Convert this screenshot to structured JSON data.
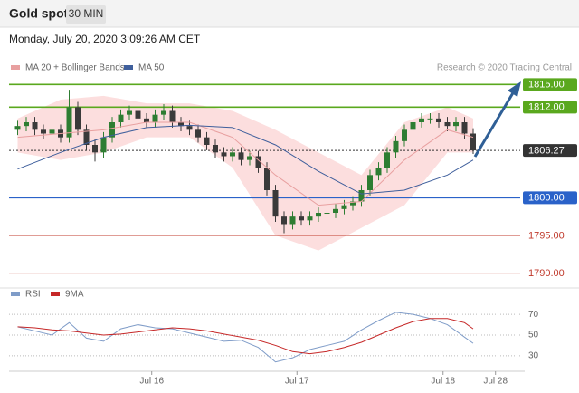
{
  "header": {
    "title": "Gold spot",
    "timeframe": "30 MIN",
    "timestamp": "Monday, July 20, 2020 3:09:26 AM CET"
  },
  "chart_data": [
    {
      "type": "candlestick",
      "credit": "Research © 2020 Trading Central",
      "xlim": [
        0,
        60
      ],
      "ylim": [
        1789,
        1816
      ],
      "up_color": "#2e7d32",
      "down_color": "#3a3a3a",
      "x": [
        1,
        2,
        3,
        4,
        5,
        6,
        7,
        8,
        9,
        10,
        11,
        12,
        13,
        14,
        15,
        16,
        17,
        18,
        19,
        20,
        21,
        22,
        23,
        24,
        25,
        26,
        27,
        28,
        29,
        30,
        31,
        32,
        33,
        34,
        35,
        36,
        37,
        38,
        39,
        40,
        41,
        42,
        43,
        44,
        45,
        46,
        47,
        48,
        49,
        50,
        51,
        52,
        53,
        54
      ],
      "open": [
        1809,
        1809.5,
        1810,
        1809,
        1808.5,
        1809,
        1808,
        1812,
        1809,
        1807,
        1806,
        1808,
        1810,
        1811,
        1811.5,
        1810.5,
        1810,
        1811,
        1811.5,
        1810,
        1809.5,
        1809,
        1808,
        1807,
        1806,
        1805.5,
        1806,
        1805,
        1805.5,
        1804,
        1801,
        1797.5,
        1796.5,
        1797.5,
        1797,
        1797.5,
        1798,
        1798,
        1798.5,
        1799,
        1799.5,
        1801,
        1803,
        1804,
        1806,
        1807.5,
        1809,
        1810,
        1810.5,
        1810.5,
        1810,
        1809.5,
        1810,
        1808.5
      ],
      "high": [
        1810.2,
        1810.7,
        1810.7,
        1809.7,
        1809.7,
        1809.7,
        1814.3,
        1812.7,
        1809.7,
        1807.7,
        1808.7,
        1810.7,
        1811.7,
        1812.2,
        1812.2,
        1811.2,
        1811.7,
        1812.4,
        1812.2,
        1810.7,
        1810.2,
        1809.7,
        1808.7,
        1807.7,
        1806.7,
        1806.7,
        1806.7,
        1806.2,
        1806.2,
        1804.7,
        1801.7,
        1798.2,
        1798.2,
        1798.2,
        1798.2,
        1798.7,
        1798.7,
        1799.2,
        1799.7,
        1800.2,
        1801.7,
        1803.7,
        1804.7,
        1806.7,
        1808.2,
        1809.7,
        1811.2,
        1811.2,
        1811.2,
        1811.2,
        1810.7,
        1810.7,
        1810.7,
        1809.2
      ],
      "low": [
        1808.3,
        1808.8,
        1808.3,
        1807.8,
        1807.8,
        1807.3,
        1807.3,
        1808.3,
        1806.3,
        1804.8,
        1805.3,
        1807.3,
        1809.3,
        1810.3,
        1809.8,
        1809.3,
        1809.3,
        1810.3,
        1809.3,
        1808.8,
        1808.3,
        1807.3,
        1806.3,
        1805.3,
        1804.8,
        1804.8,
        1804.3,
        1804.3,
        1803.3,
        1800.3,
        1796.8,
        1795.3,
        1795.8,
        1796.3,
        1796.3,
        1796.8,
        1797.3,
        1797.3,
        1797.8,
        1798.3,
        1798.8,
        1800.3,
        1802.3,
        1803.3,
        1805.3,
        1806.8,
        1808.3,
        1809.3,
        1809.8,
        1809.3,
        1808.8,
        1808.8,
        1807.8,
        1805.8
      ],
      "close": [
        1809.5,
        1810,
        1809,
        1808.5,
        1809,
        1808,
        1812,
        1809,
        1807,
        1806,
        1808,
        1810,
        1811,
        1811.5,
        1810.5,
        1810,
        1811,
        1811.5,
        1810,
        1809.5,
        1809,
        1808,
        1807,
        1806,
        1805.5,
        1806,
        1805,
        1805.5,
        1804,
        1801,
        1797.5,
        1796.5,
        1797.5,
        1797,
        1797.5,
        1798,
        1798,
        1798.5,
        1799,
        1799.5,
        1801,
        1803,
        1804,
        1806,
        1807.5,
        1809,
        1810,
        1810.5,
        1810.5,
        1810,
        1809.5,
        1810,
        1808.5,
        1806.27
      ],
      "overlays": [
        {
          "name": "MA 20 + Bollinger Bands",
          "color": "#e8a0a0",
          "band_color": "#fcdede",
          "x": [
            1,
            6,
            11,
            16,
            21,
            26,
            31,
            36,
            41,
            46,
            51,
            54
          ],
          "values": [
            1808,
            1808.5,
            1809,
            1810,
            1810,
            1808,
            1803,
            1799,
            1799.5,
            1805,
            1809,
            1808
          ],
          "upper": [
            1810.5,
            1813,
            1813.5,
            1812.5,
            1812.5,
            1811.5,
            1809,
            1806,
            1803,
            1810,
            1812,
            1810.5
          ],
          "lower": [
            1806,
            1805,
            1806,
            1808,
            1808,
            1804,
            1795,
            1793,
            1796,
            1799,
            1806,
            1806
          ]
        },
        {
          "name": "MA 50",
          "color": "#3f5f9c",
          "x": [
            1,
            6,
            11,
            16,
            21,
            26,
            31,
            36,
            41,
            46,
            51,
            54
          ],
          "values": [
            1803.8,
            1806,
            1808,
            1809.3,
            1809.6,
            1809.3,
            1807,
            1803.5,
            1800.5,
            1801,
            1803,
            1805
          ]
        }
      ],
      "levels": [
        {
          "value": 1815,
          "label": "1815.00",
          "color": "#5aa81e",
          "boxed": true
        },
        {
          "value": 1812,
          "label": "1812.00",
          "color": "#5aa81e",
          "boxed": true
        },
        {
          "value": 1806.27,
          "label": "1806.27",
          "color": "#333333",
          "boxed": true
        },
        {
          "value": 1800,
          "label": "1800.00",
          "color": "#2a62c9",
          "boxed": true
        },
        {
          "value": 1795,
          "label": "1795.00",
          "color": "#c0392b",
          "boxed": false
        },
        {
          "value": 1790,
          "label": "1790.00",
          "color": "#c0392b",
          "boxed": false
        }
      ]
    },
    {
      "type": "line",
      "xlim": [
        0,
        60
      ],
      "ylim": [
        15,
        85
      ],
      "yticks": [
        30,
        50,
        70
      ],
      "grid": true,
      "xticks": [
        {
          "value": 16.6,
          "label": "Jul 16"
        },
        {
          "value": 33.5,
          "label": "Jul 17"
        },
        {
          "value": 50.5,
          "label": "Jul 18"
        },
        {
          "value": 56.6,
          "label": "Jul 28"
        }
      ],
      "series": [
        {
          "name": "RSI",
          "color": "#7f9cc8",
          "x": [
            1,
            3,
            5,
            7,
            9,
            11,
            13,
            15,
            17,
            19,
            21,
            23,
            25,
            27,
            29,
            31,
            33,
            35,
            37,
            39,
            41,
            43,
            45,
            47,
            49,
            51,
            53,
            54
          ],
          "values": [
            58,
            54,
            50,
            62,
            47,
            44,
            56,
            60,
            57,
            56,
            52,
            48,
            44,
            45,
            38,
            24,
            28,
            36,
            40,
            44,
            55,
            64,
            72,
            70,
            66,
            60,
            48,
            42
          ]
        },
        {
          "name": "9MA",
          "color": "#c62828",
          "x": [
            1,
            3,
            5,
            7,
            9,
            11,
            13,
            15,
            17,
            19,
            21,
            23,
            25,
            27,
            29,
            31,
            33,
            35,
            37,
            39,
            41,
            43,
            45,
            47,
            49,
            51,
            53,
            54
          ],
          "values": [
            58,
            57,
            55,
            54,
            52,
            50,
            51,
            53,
            55,
            57,
            56,
            54,
            51,
            48,
            45,
            40,
            34,
            32,
            34,
            38,
            43,
            50,
            57,
            63,
            66,
            66,
            62,
            56
          ]
        }
      ]
    }
  ]
}
